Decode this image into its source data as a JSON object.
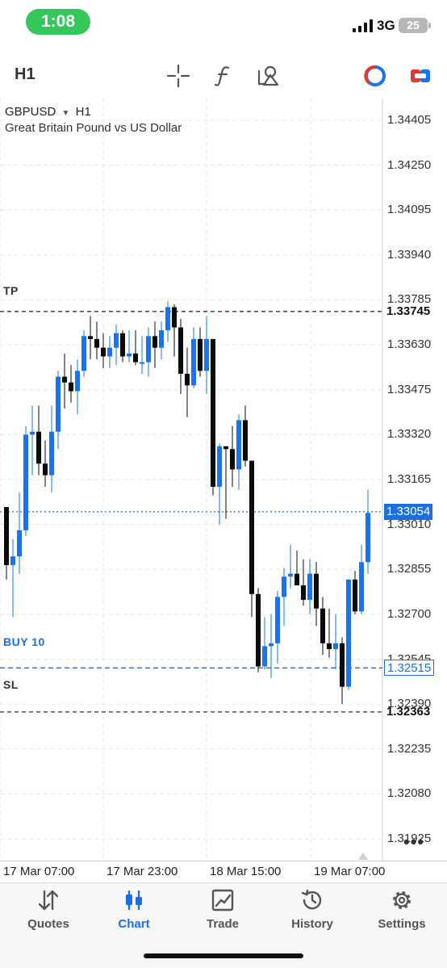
{
  "status_bar": {
    "time": "1:08",
    "network": "3G",
    "battery": "25"
  },
  "toolbar": {
    "timeframe": "H1",
    "icons": [
      "crosshair-icon",
      "indicator-function-icon",
      "objects-icon",
      "one-click-trading-icon",
      "trade-toggle-icon"
    ]
  },
  "chart": {
    "symbol": "GBPUSD",
    "timeframe": "H1",
    "description": "Great Britain Pound vs US Dollar",
    "price_levels": [
      "1.34405",
      "1.34250",
      "1.34095",
      "1.33940",
      "1.33785",
      "1.33630",
      "1.33475",
      "1.33320",
      "1.33165",
      "1.33010",
      "1.32855",
      "1.32700",
      "1.32545",
      "1.32390",
      "1.32235",
      "1.32080",
      "1.31925"
    ],
    "time_labels": [
      "17 Mar 07:00",
      "17 Mar 23:00",
      "18 Mar 15:00",
      "19 Mar 07:00"
    ],
    "lines": {
      "tp": {
        "label": "TP",
        "price": "1.33745"
      },
      "current": {
        "price": "1.33054"
      },
      "buy": {
        "label": "BUY 10",
        "price": "1.32515"
      },
      "sl": {
        "label": "SL",
        "price": "1.32363"
      }
    },
    "more_label": "•••",
    "colors": {
      "bull": "#1a73e8",
      "bear": "#0a0a0a",
      "price_line": "#1a6fe0",
      "grid": "#e6e6e6",
      "level_line": "#333333"
    }
  },
  "chart_data": {
    "type": "candlestick",
    "title": "GBPUSD H1",
    "ylim": [
      1.3185,
      1.3448
    ],
    "x_tick_labels": [
      "17 Mar 07:00",
      "17 Mar 23:00",
      "18 Mar 15:00",
      "19 Mar 07:00"
    ],
    "candles": [
      [
        1.3307,
        1.3307,
        1.3282,
        1.3287
      ],
      [
        1.3287,
        1.3296,
        1.3269,
        1.329
      ],
      [
        1.329,
        1.3312,
        1.3284,
        1.3299
      ],
      [
        1.3299,
        1.3335,
        1.3297,
        1.3332
      ],
      [
        1.3332,
        1.3342,
        1.3318,
        1.3333
      ],
      [
        1.3333,
        1.3342,
        1.3318,
        1.3322
      ],
      [
        1.3322,
        1.333,
        1.3314,
        1.3318
      ],
      [
        1.3318,
        1.3342,
        1.3312,
        1.3333
      ],
      [
        1.3333,
        1.3354,
        1.3327,
        1.3352
      ],
      [
        1.3352,
        1.336,
        1.3341,
        1.335
      ],
      [
        1.335,
        1.3356,
        1.3343,
        1.3347
      ],
      [
        1.3347,
        1.3358,
        1.3339,
        1.3354
      ],
      [
        1.3354,
        1.3368,
        1.3352,
        1.3366
      ],
      [
        1.3366,
        1.3373,
        1.3358,
        1.3365
      ],
      [
        1.3365,
        1.3371,
        1.3358,
        1.3362
      ],
      [
        1.3362,
        1.3367,
        1.3355,
        1.3359
      ],
      [
        1.3359,
        1.3366,
        1.3355,
        1.3362
      ],
      [
        1.3362,
        1.337,
        1.3356,
        1.3367
      ],
      [
        1.3367,
        1.3368,
        1.3357,
        1.3359
      ],
      [
        1.3359,
        1.3368,
        1.3357,
        1.336
      ],
      [
        1.336,
        1.3368,
        1.3356,
        1.3357
      ],
      [
        1.3357,
        1.3366,
        1.3353,
        1.3357
      ],
      [
        1.3357,
        1.3369,
        1.3352,
        1.3366
      ],
      [
        1.3366,
        1.3371,
        1.3355,
        1.3362
      ],
      [
        1.3362,
        1.3371,
        1.3358,
        1.3368
      ],
      [
        1.3368,
        1.3378,
        1.3364,
        1.3376
      ],
      [
        1.3376,
        1.3377,
        1.3359,
        1.3369
      ],
      [
        1.3369,
        1.3372,
        1.3346,
        1.3353
      ],
      [
        1.3353,
        1.3362,
        1.3338,
        1.3349
      ],
      [
        1.3349,
        1.3369,
        1.3348,
        1.3365
      ],
      [
        1.3365,
        1.3369,
        1.3352,
        1.3354
      ],
      [
        1.3354,
        1.3373,
        1.3346,
        1.3365
      ],
      [
        1.3365,
        1.3365,
        1.3311,
        1.3314
      ],
      [
        1.3314,
        1.3329,
        1.3301,
        1.3328
      ],
      [
        1.3328,
        1.3328,
        1.3303,
        1.3327
      ],
      [
        1.3327,
        1.3335,
        1.3314,
        1.332
      ],
      [
        1.332,
        1.3339,
        1.3313,
        1.3337
      ],
      [
        1.3337,
        1.3342,
        1.3321,
        1.3323
      ],
      [
        1.3323,
        1.3323,
        1.3269,
        1.3277
      ],
      [
        1.3277,
        1.3279,
        1.325,
        1.3252
      ],
      [
        1.3252,
        1.3269,
        1.3251,
        1.3259
      ],
      [
        1.3259,
        1.327,
        1.3248,
        1.326
      ],
      [
        1.326,
        1.3278,
        1.3253,
        1.3276
      ],
      [
        1.3276,
        1.3286,
        1.3266,
        1.3283
      ],
      [
        1.3283,
        1.3294,
        1.3279,
        1.3284
      ],
      [
        1.3284,
        1.3292,
        1.328,
        1.328
      ],
      [
        1.328,
        1.3289,
        1.3273,
        1.3275
      ],
      [
        1.3275,
        1.3289,
        1.327,
        1.3284
      ],
      [
        1.3284,
        1.3288,
        1.3266,
        1.3272
      ],
      [
        1.3272,
        1.3276,
        1.3256,
        1.326
      ],
      [
        1.326,
        1.3272,
        1.3255,
        1.3258
      ],
      [
        1.3258,
        1.327,
        1.3251,
        1.326
      ],
      [
        1.326,
        1.3262,
        1.3239,
        1.3245
      ],
      [
        1.3245,
        1.3282,
        1.3244,
        1.3282
      ],
      [
        1.3282,
        1.3285,
        1.327,
        1.3271
      ],
      [
        1.3271,
        1.3294,
        1.327,
        1.3288
      ],
      [
        1.3288,
        1.3313,
        1.3284,
        1.3305
      ]
    ],
    "levels": {
      "TP": 1.33745,
      "BUY 10": 1.32515,
      "SL": 1.32363,
      "current": 1.33054
    }
  },
  "tabs": [
    {
      "label": "Quotes",
      "icon": "quotes-arrows-icon",
      "active": false
    },
    {
      "label": "Chart",
      "icon": "chart-candles-icon",
      "active": true
    },
    {
      "label": "Trade",
      "icon": "trade-chart-icon",
      "active": false
    },
    {
      "label": "History",
      "icon": "history-clock-icon",
      "active": false
    },
    {
      "label": "Settings",
      "icon": "settings-gear-icon",
      "active": false
    }
  ]
}
